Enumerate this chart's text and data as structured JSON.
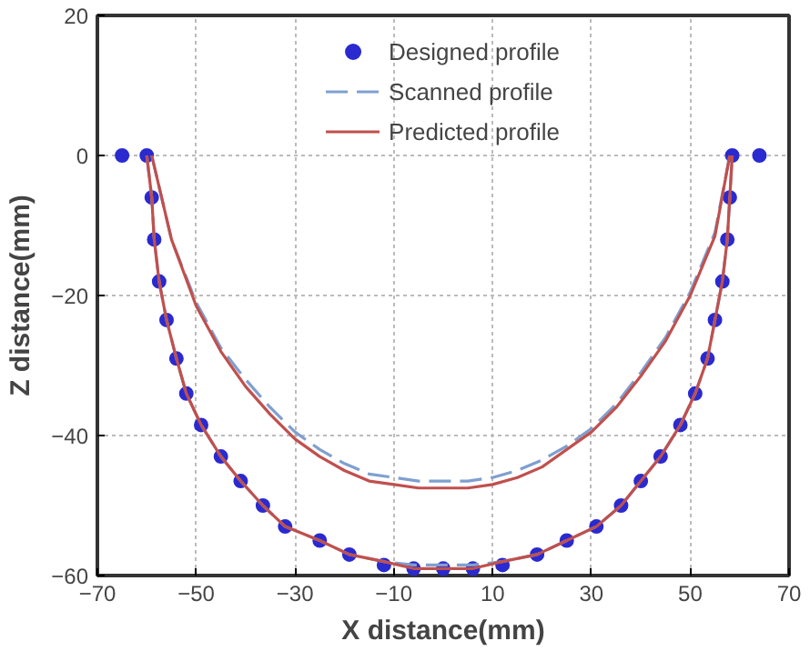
{
  "chart_data": {
    "type": "line",
    "xlabel": "X distance(mm)",
    "ylabel": "Z distance(mm)",
    "xlim": [
      -70,
      70
    ],
    "xticks": [
      -70,
      -50,
      -30,
      -10,
      10,
      30,
      50,
      70
    ],
    "ylim": [
      -60,
      20
    ],
    "yticks": [
      -60,
      -40,
      -20,
      0,
      20
    ],
    "grid": true,
    "legend": "top",
    "series": [
      {
        "name": "Designed profile",
        "type": "scatter",
        "marker": "circle",
        "color": "#2a2ad0",
        "x": [
          -65,
          -60,
          -59,
          -58.5,
          -57.5,
          -56,
          -54,
          -52,
          -49,
          -45,
          -41,
          -36.5,
          -32,
          -25,
          -19,
          -12,
          -6,
          0,
          6,
          12,
          19,
          25,
          31,
          36,
          40,
          44,
          48,
          51,
          53.5,
          55,
          56.5,
          57.5,
          58,
          58.5,
          64
        ],
        "values": [
          0,
          0,
          -6,
          -12,
          -18,
          -23.5,
          -29,
          -34,
          -38.5,
          -43,
          -46.5,
          -50,
          -53,
          -55,
          -57,
          -58.5,
          -59,
          -59,
          -59,
          -58.5,
          -57,
          -55,
          -53,
          -50,
          -46.5,
          -43,
          -38.5,
          -34,
          -29,
          -23.5,
          -18,
          -12,
          -6,
          0,
          0
        ]
      },
      {
        "name": "Scanned profile",
        "line_style": "dashed",
        "color": "#7f9fcf",
        "x": [
          -60,
          -59,
          -58.5,
          -57.5,
          -56,
          -54,
          -52,
          -49,
          -45,
          -41,
          -36.5,
          -32,
          -25,
          -19,
          -12,
          -6,
          0,
          6,
          12,
          19,
          25,
          31,
          36,
          40,
          44,
          48,
          51,
          53.5,
          55,
          56.5,
          57.5,
          58,
          58.5,
          0,
          -59,
          -55,
          -50,
          -45,
          -40,
          -35,
          -30,
          -25,
          -20,
          -15,
          -10,
          -5,
          0,
          5,
          10,
          15,
          20,
          25,
          30,
          35,
          40,
          45,
          50,
          55,
          58
        ],
        "values": [
          0,
          -6,
          -12,
          -18,
          -23.5,
          -29,
          -34,
          -38.5,
          -43,
          -46.5,
          -50,
          -53,
          -55,
          -57,
          -58,
          -58.5,
          -58.5,
          -58.5,
          -58,
          -57,
          -55,
          -53,
          -50,
          -46.5,
          -43,
          -38.5,
          -34,
          -29,
          -23.5,
          -18,
          -12,
          -6,
          0,
          null,
          0,
          -12,
          -21,
          -27.5,
          -32,
          -36,
          -39.5,
          -42,
          -44,
          -45.5,
          -46,
          -46.5,
          -46.5,
          -46.5,
          -46,
          -45,
          -43.5,
          -41.5,
          -39,
          -35.5,
          -31,
          -26,
          -19.5,
          -11,
          0
        ]
      },
      {
        "name": "Predicted profile",
        "color": "#c0504d",
        "x": [
          -60,
          -59,
          -58.5,
          -57.5,
          -56,
          -54,
          -52,
          -49,
          -45,
          -41,
          -36.5,
          -32,
          -25,
          -19,
          -12,
          -6,
          0,
          6,
          12,
          19,
          25,
          31,
          36,
          40,
          44,
          48,
          51,
          53.5,
          55,
          56.5,
          57.5,
          58,
          58.5,
          0,
          -59,
          -55,
          -50,
          -45,
          -40,
          -35,
          -30,
          -25,
          -20,
          -15,
          -10,
          -5,
          0,
          5,
          10,
          15,
          20,
          25,
          30,
          35,
          40,
          45,
          50,
          55,
          58
        ],
        "values": [
          0,
          -6,
          -12,
          -18,
          -23.5,
          -29,
          -34,
          -38.5,
          -43,
          -46.5,
          -50,
          -53,
          -55,
          -57,
          -58,
          -59,
          -59,
          -59,
          -58,
          -57,
          -55,
          -53,
          -50,
          -46.5,
          -43,
          -38.5,
          -34,
          -29,
          -23.5,
          -18,
          -12,
          -6,
          0,
          null,
          0,
          -12,
          -21.5,
          -28,
          -33,
          -37,
          -40.5,
          -43,
          -45,
          -46.5,
          -47,
          -47.5,
          -47.5,
          -47.5,
          -47,
          -46,
          -44.5,
          -42,
          -39.5,
          -36,
          -31.5,
          -26.5,
          -20,
          -11.5,
          0
        ]
      }
    ]
  }
}
